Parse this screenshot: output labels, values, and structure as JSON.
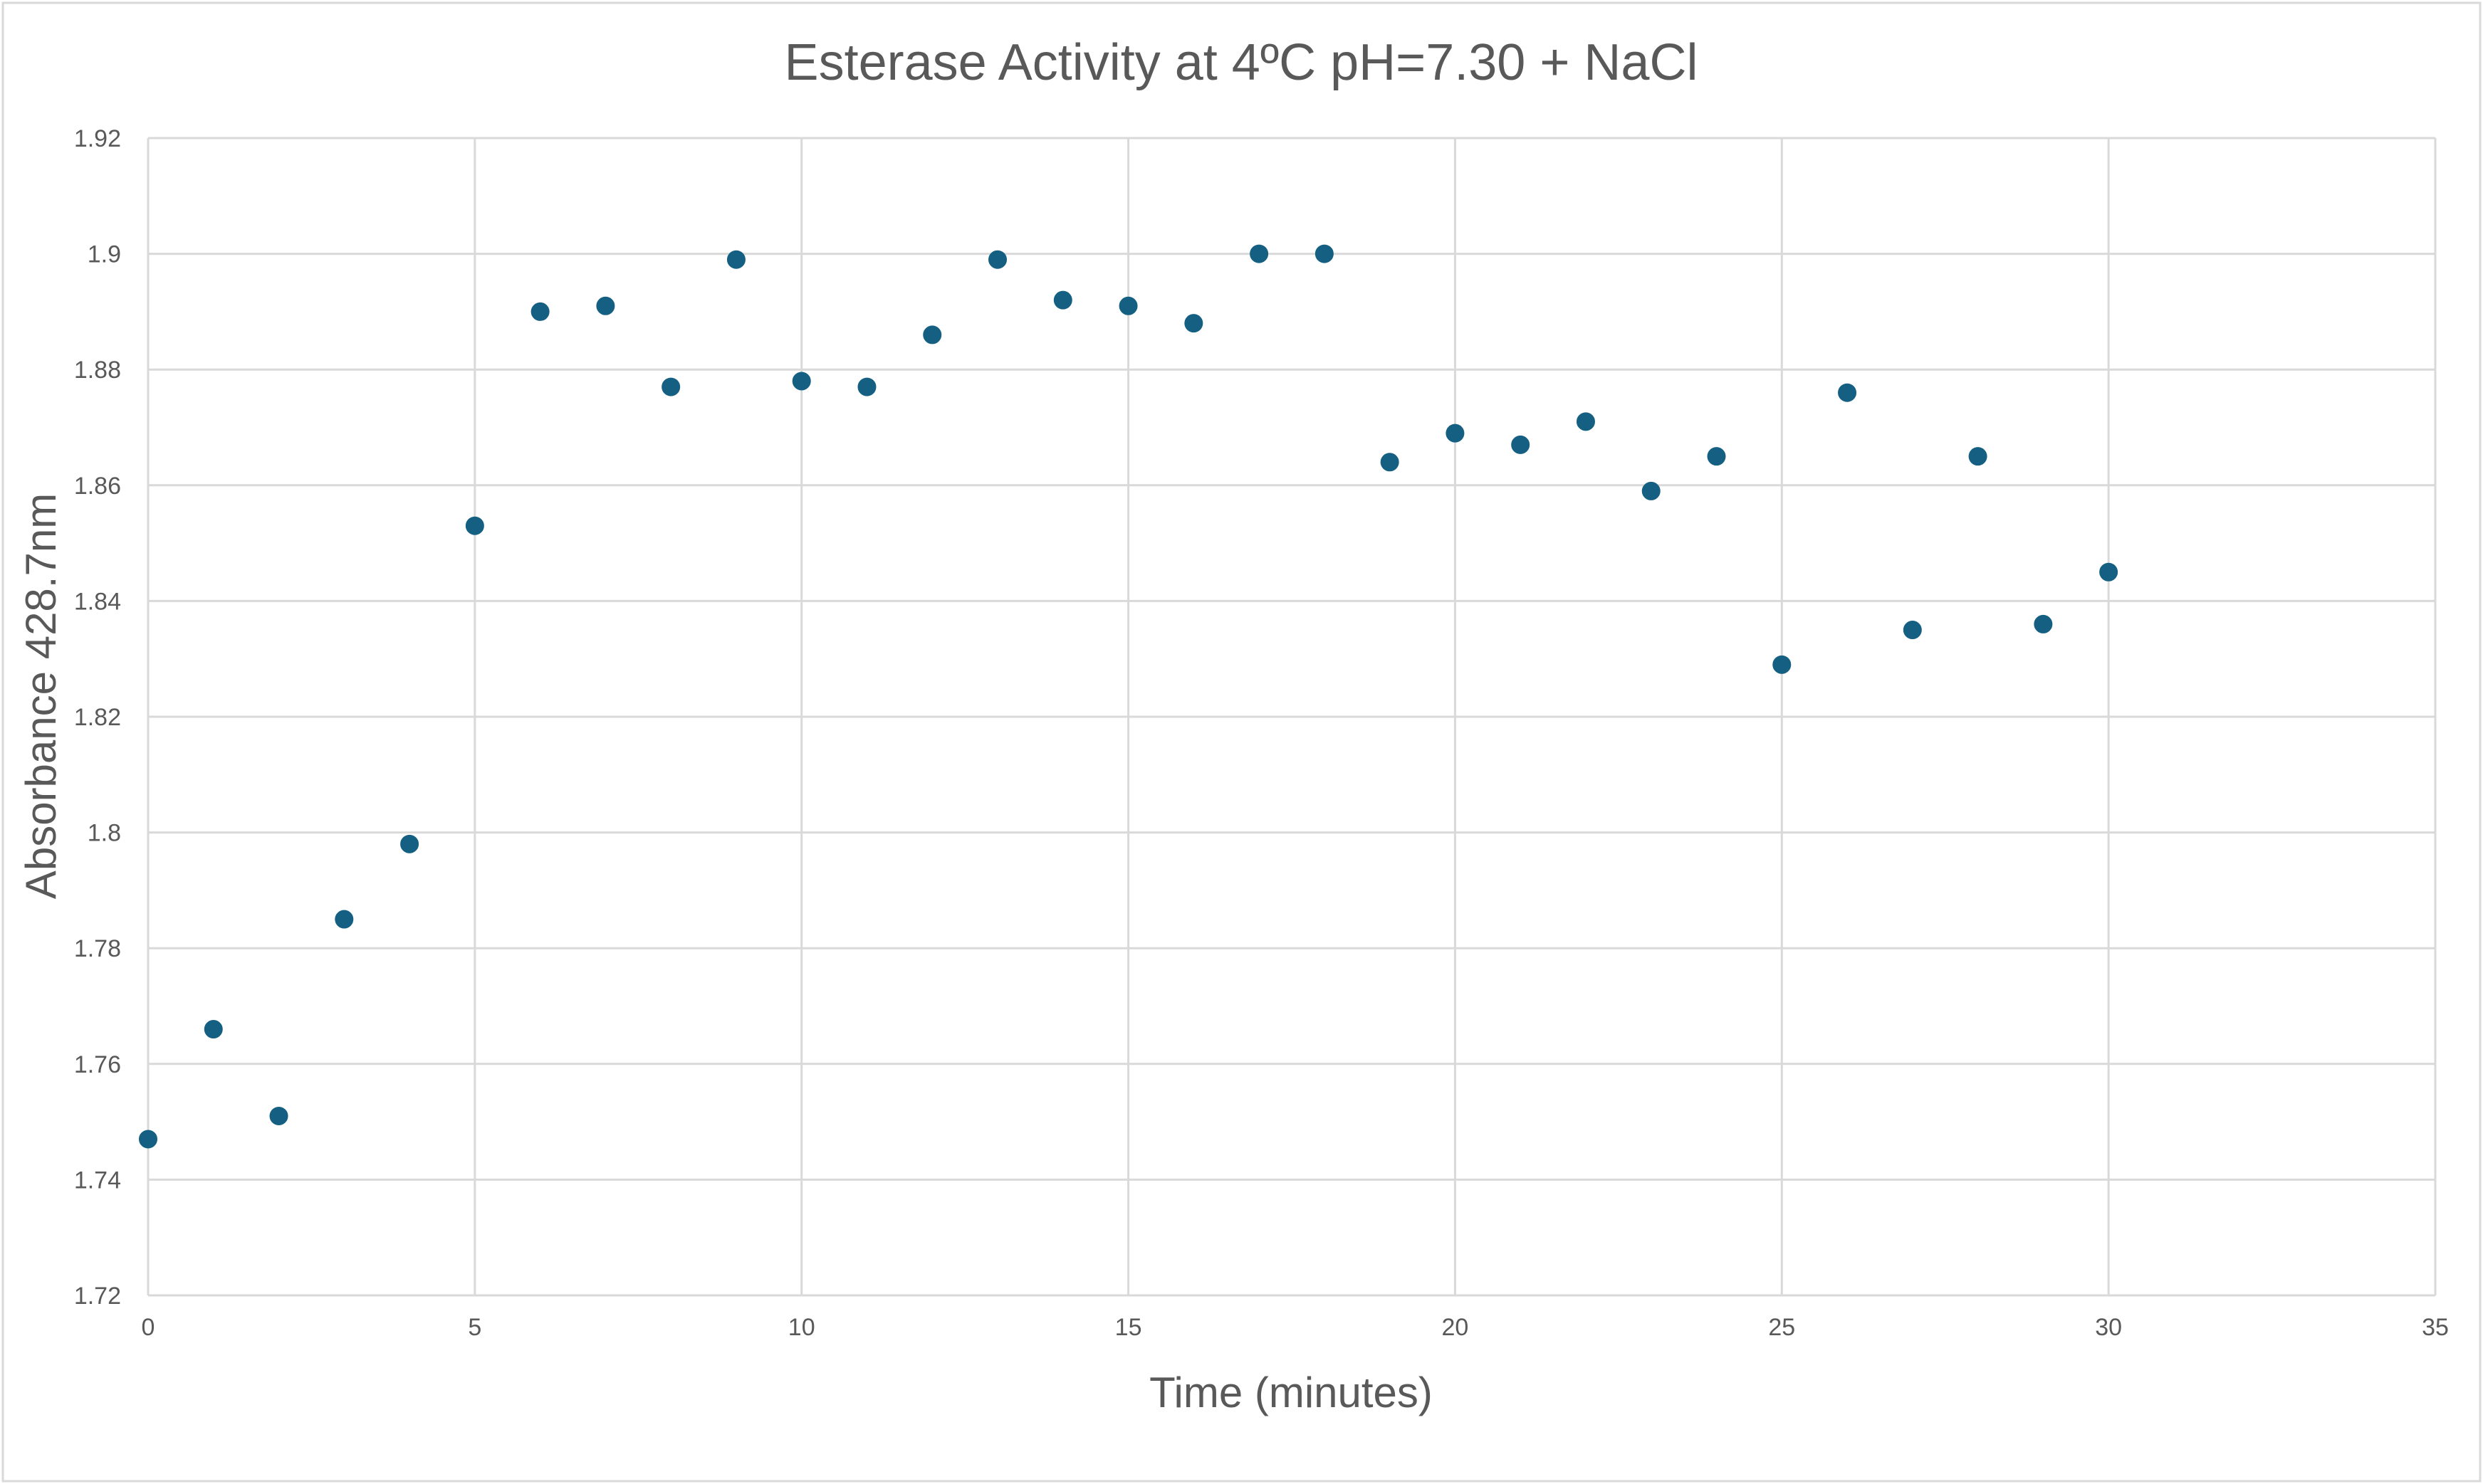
{
  "chart_data": {
    "type": "scatter",
    "title": "Esterase Activity at 4ºC  pH=7.30 + NaCl",
    "xlabel": "Time (minutes)",
    "ylabel": "Absorbance 428.7nm",
    "xlim": [
      0,
      35
    ],
    "ylim": [
      1.72,
      1.92
    ],
    "x_ticks": [
      "0",
      "5",
      "10",
      "15",
      "20",
      "25",
      "30",
      "35"
    ],
    "y_ticks": [
      "1.72",
      "1.74",
      "1.76",
      "1.78",
      "1.8",
      "1.82",
      "1.84",
      "1.86",
      "1.88",
      "1.9",
      "1.92"
    ],
    "grid": true,
    "legend": false,
    "marker_color": "#156082",
    "series": [
      {
        "points": [
          {
            "x": 0,
            "y": 1.747
          },
          {
            "x": 1,
            "y": 1.766
          },
          {
            "x": 2,
            "y": 1.751
          },
          {
            "x": 3,
            "y": 1.785
          },
          {
            "x": 4,
            "y": 1.798
          },
          {
            "x": 5,
            "y": 1.853
          },
          {
            "x": 6,
            "y": 1.89
          },
          {
            "x": 7,
            "y": 1.891
          },
          {
            "x": 8,
            "y": 1.877
          },
          {
            "x": 9,
            "y": 1.899
          },
          {
            "x": 10,
            "y": 1.878
          },
          {
            "x": 11,
            "y": 1.877
          },
          {
            "x": 12,
            "y": 1.886
          },
          {
            "x": 13,
            "y": 1.899
          },
          {
            "x": 14,
            "y": 1.892
          },
          {
            "x": 15,
            "y": 1.891
          },
          {
            "x": 16,
            "y": 1.888
          },
          {
            "x": 17,
            "y": 1.9
          },
          {
            "x": 18,
            "y": 1.9
          },
          {
            "x": 19,
            "y": 1.864
          },
          {
            "x": 20,
            "y": 1.869
          },
          {
            "x": 21,
            "y": 1.867
          },
          {
            "x": 22,
            "y": 1.871
          },
          {
            "x": 23,
            "y": 1.859
          },
          {
            "x": 24,
            "y": 1.865
          },
          {
            "x": 25,
            "y": 1.829
          },
          {
            "x": 26,
            "y": 1.876
          },
          {
            "x": 27,
            "y": 1.835
          },
          {
            "x": 28,
            "y": 1.865
          },
          {
            "x": 29,
            "y": 1.836
          },
          {
            "x": 30,
            "y": 1.845
          }
        ]
      }
    ]
  }
}
